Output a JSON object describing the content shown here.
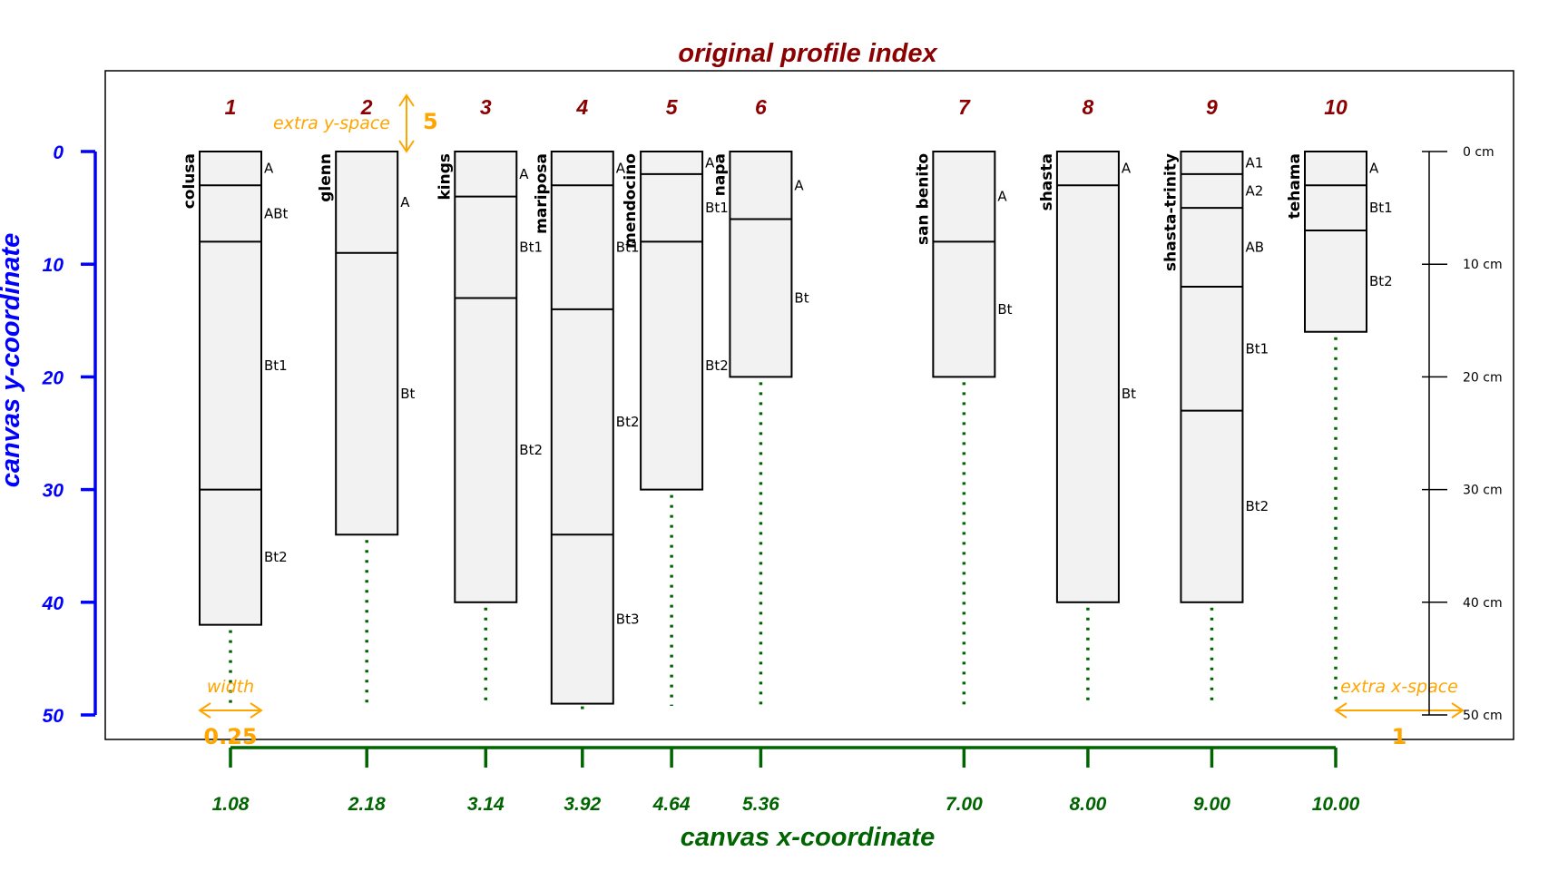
{
  "colors": {
    "title": "#8B0000",
    "y_axis": "#0000FF",
    "x_axis": "#006400",
    "annotation": "#FFA500",
    "profile_fill": "#F2F2F2",
    "outline": "#000000"
  },
  "chart_data": {
    "type": "diagram",
    "title": "original profile index",
    "xlabel": "canvas x-coordinate",
    "ylabel": "canvas y-coordinate",
    "ylim": [
      0,
      50
    ],
    "y_ticks": [
      "0",
      "10",
      "20",
      "30",
      "40",
      "50"
    ],
    "depth_ticks": [
      {
        "value": 0,
        "label": "0 cm"
      },
      {
        "value": 10,
        "label": "10 cm"
      },
      {
        "value": 20,
        "label": "20 cm"
      },
      {
        "value": 30,
        "label": "30 cm"
      },
      {
        "value": 40,
        "label": "40 cm"
      },
      {
        "value": 50,
        "label": "50 cm"
      }
    ],
    "profiles": [
      {
        "index": "1",
        "name": "colusa",
        "x": 1.08,
        "x_label": "1.08",
        "horizons": [
          {
            "name": "A",
            "top": 0,
            "bottom": 3
          },
          {
            "name": "ABt",
            "top": 3,
            "bottom": 8
          },
          {
            "name": "Bt1",
            "top": 8,
            "bottom": 30
          },
          {
            "name": "Bt2",
            "top": 30,
            "bottom": 42
          }
        ]
      },
      {
        "index": "2",
        "name": "glenn",
        "x": 2.18,
        "x_label": "2.18",
        "horizons": [
          {
            "name": "A",
            "top": 0,
            "bottom": 9
          },
          {
            "name": "Bt",
            "top": 9,
            "bottom": 34
          }
        ]
      },
      {
        "index": "3",
        "name": "kings",
        "x": 3.14,
        "x_label": "3.14",
        "horizons": [
          {
            "name": "A",
            "top": 0,
            "bottom": 4
          },
          {
            "name": "Bt1",
            "top": 4,
            "bottom": 13
          },
          {
            "name": "Bt2",
            "top": 13,
            "bottom": 40
          }
        ]
      },
      {
        "index": "4",
        "name": "mariposa",
        "x": 3.92,
        "x_label": "3.92",
        "horizons": [
          {
            "name": "A",
            "top": 0,
            "bottom": 3
          },
          {
            "name": "Bt1",
            "top": 3,
            "bottom": 14
          },
          {
            "name": "Bt2",
            "top": 14,
            "bottom": 34
          },
          {
            "name": "Bt3",
            "top": 34,
            "bottom": 49
          }
        ]
      },
      {
        "index": "5",
        "name": "mendocino",
        "x": 4.64,
        "x_label": "4.64",
        "horizons": [
          {
            "name": "A",
            "top": 0,
            "bottom": 2
          },
          {
            "name": "Bt1",
            "top": 2,
            "bottom": 8
          },
          {
            "name": "Bt2",
            "top": 8,
            "bottom": 30
          }
        ]
      },
      {
        "index": "6",
        "name": "napa",
        "x": 5.36,
        "x_label": "5.36",
        "horizons": [
          {
            "name": "A",
            "top": 0,
            "bottom": 6
          },
          {
            "name": "Bt",
            "top": 6,
            "bottom": 20
          }
        ]
      },
      {
        "index": "7",
        "name": "san benito",
        "x": 7.0,
        "x_label": "7.00",
        "horizons": [
          {
            "name": "A",
            "top": 0,
            "bottom": 8
          },
          {
            "name": "Bt",
            "top": 8,
            "bottom": 20
          }
        ]
      },
      {
        "index": "8",
        "name": "shasta",
        "x": 8.0,
        "x_label": "8.00",
        "horizons": [
          {
            "name": "A",
            "top": 0,
            "bottom": 3
          },
          {
            "name": "Bt",
            "top": 3,
            "bottom": 40
          }
        ]
      },
      {
        "index": "9",
        "name": "shasta-trinity",
        "x": 9.0,
        "x_label": "9.00",
        "horizons": [
          {
            "name": "A1",
            "top": 0,
            "bottom": 2
          },
          {
            "name": "A2",
            "top": 2,
            "bottom": 5
          },
          {
            "name": "AB",
            "top": 5,
            "bottom": 12
          },
          {
            "name": "Bt1",
            "top": 12,
            "bottom": 23
          },
          {
            "name": "Bt2",
            "top": 23,
            "bottom": 40
          }
        ]
      },
      {
        "index": "10",
        "name": "tehama",
        "x": 10.0,
        "x_label": "10.00",
        "horizons": [
          {
            "name": "A",
            "top": 0,
            "bottom": 3
          },
          {
            "name": "Bt1",
            "top": 3,
            "bottom": 7
          },
          {
            "name": "Bt2",
            "top": 7,
            "bottom": 16
          }
        ]
      }
    ],
    "annotations": {
      "extra_y_space_label": "extra y-space",
      "extra_y_space_value": "5",
      "width_label": "width",
      "width_value": "0.25",
      "extra_x_space_label": "extra x-space",
      "extra_x_space_value": "1"
    }
  }
}
